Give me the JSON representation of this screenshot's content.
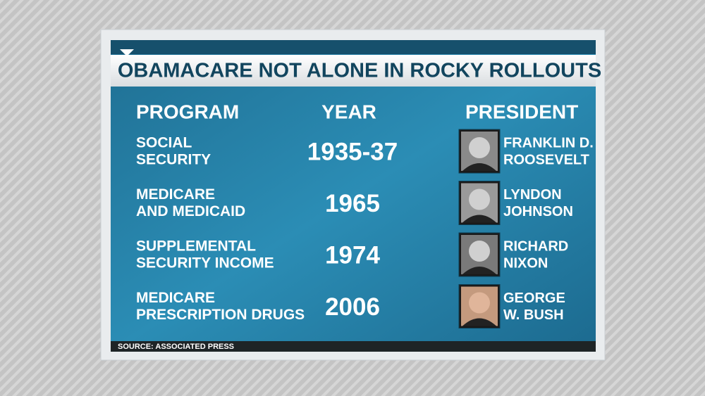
{
  "title": "OBAMACARE NOT ALONE IN ROCKY ROLLOUTS",
  "table": {
    "headers": [
      "PROGRAM",
      "YEAR",
      "PRESIDENT"
    ],
    "rows": [
      {
        "program": [
          "SOCIAL",
          "SECURITY"
        ],
        "year": "1935-37",
        "president": [
          "FRANKLIN D.",
          "ROOSEVELT"
        ]
      },
      {
        "program": [
          "MEDICARE",
          "AND MEDICAID"
        ],
        "year": "1965",
        "president": [
          "LYNDON",
          "JOHNSON"
        ]
      },
      {
        "program": [
          "SUPPLEMENTAL",
          "SECURITY INCOME"
        ],
        "year": "1974",
        "president": [
          "RICHARD",
          "NIXON"
        ]
      },
      {
        "program": [
          "MEDICARE",
          "PRESCRIPTION DRUGS"
        ],
        "year": "2006",
        "president": [
          "GEORGE",
          "W. BUSH"
        ]
      }
    ]
  },
  "source": "SOURCE: ASSOCIATED PRESS"
}
